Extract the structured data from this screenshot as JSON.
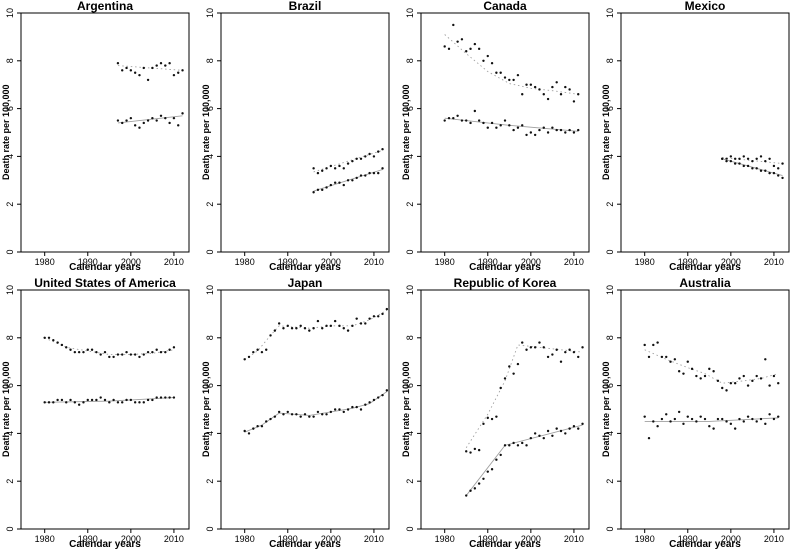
{
  "page": {
    "background": "#ffffff"
  },
  "axes": {
    "xlabel": "Calendar years",
    "ylabel": "Death rate per 100,000",
    "x_ticks": [
      1980,
      1990,
      2000,
      2010
    ],
    "y_ticks": [
      0,
      2,
      4,
      6,
      8,
      10
    ],
    "xlim": [
      1974.5,
      2013.5
    ],
    "ylim": [
      0,
      10
    ],
    "grid": false,
    "legend": "none"
  },
  "styles": {
    "point_color": "#111111",
    "trend_color": "#a0a0a0",
    "box_color": "#000000",
    "upper_trend_style": "dotted",
    "lower_trend_style": "solid"
  },
  "chart_data": [
    {
      "type": "scatter",
      "title": "Argentina",
      "x_start": 1997,
      "series": [
        {
          "name": "upper",
          "trend_style": "dotted",
          "values": [
            7.9,
            7.6,
            7.7,
            7.6,
            7.5,
            7.4,
            7.7,
            7.2,
            7.7,
            7.8,
            7.9,
            7.8,
            7.9,
            7.4,
            7.5,
            7.6
          ],
          "trend": [
            [
              1997,
              7.8
            ],
            [
              2012,
              7.6
            ]
          ]
        },
        {
          "name": "lower",
          "trend_style": "solid",
          "values": [
            5.5,
            5.4,
            5.5,
            5.6,
            5.3,
            5.2,
            5.4,
            5.5,
            5.6,
            5.5,
            5.7,
            5.6,
            5.4,
            5.6,
            5.3,
            5.8
          ],
          "trend": [
            [
              1997,
              5.4
            ],
            [
              2012,
              5.7
            ]
          ]
        }
      ]
    },
    {
      "type": "scatter",
      "title": "Brazil",
      "x_start": 1996,
      "series": [
        {
          "name": "upper",
          "trend_style": "dotted",
          "values": [
            3.5,
            3.3,
            3.4,
            3.5,
            3.6,
            3.5,
            3.6,
            3.5,
            3.7,
            3.8,
            3.9,
            3.9,
            4.0,
            4.1,
            4.0,
            4.2,
            4.3
          ],
          "trend": [
            [
              1996,
              3.35
            ],
            [
              2012,
              4.25
            ]
          ]
        },
        {
          "name": "lower",
          "trend_style": "solid",
          "values": [
            2.5,
            2.6,
            2.6,
            2.7,
            2.8,
            2.9,
            2.9,
            2.8,
            3.0,
            3.0,
            3.1,
            3.2,
            3.2,
            3.3,
            3.3,
            3.3,
            3.5
          ],
          "trend": [
            [
              1996,
              2.55
            ],
            [
              2012,
              3.45
            ]
          ]
        }
      ]
    },
    {
      "type": "scatter",
      "title": "Canada",
      "x_start": 1980,
      "series": [
        {
          "name": "upper",
          "trend_style": "dotted",
          "values": [
            8.6,
            8.5,
            9.5,
            8.8,
            8.9,
            8.4,
            8.5,
            8.7,
            8.5,
            8.0,
            8.2,
            7.9,
            7.5,
            7.5,
            7.3,
            7.2,
            7.2,
            7.4,
            6.6,
            7.0,
            7.0,
            6.9,
            6.8,
            6.6,
            6.4,
            6.9,
            7.1,
            6.6,
            6.9,
            6.8,
            6.3,
            6.6
          ],
          "trend": [
            [
              1980,
              9.1
            ],
            [
              1985,
              8.3
            ],
            [
              1990,
              7.55
            ],
            [
              1995,
              7.05
            ],
            [
              2000,
              6.85
            ],
            [
              2005,
              6.75
            ],
            [
              2011,
              6.6
            ]
          ]
        },
        {
          "name": "lower",
          "trend_style": "solid",
          "values": [
            5.5,
            5.6,
            5.6,
            5.7,
            5.5,
            5.5,
            5.4,
            5.9,
            5.5,
            5.4,
            5.2,
            5.4,
            5.2,
            5.3,
            5.5,
            5.3,
            5.1,
            5.2,
            5.3,
            4.9,
            5.0,
            4.9,
            5.1,
            5.2,
            5.0,
            5.2,
            5.1,
            5.1,
            5.0,
            5.1,
            5.0,
            5.1
          ],
          "trend": [
            [
              1980,
              5.6
            ],
            [
              1995,
              5.3
            ],
            [
              2011,
              5.05
            ]
          ]
        }
      ]
    },
    {
      "type": "scatter",
      "title": "Mexico",
      "x_start": 1998,
      "series": [
        {
          "name": "upper",
          "trend_style": "dotted",
          "values": [
            3.9,
            3.9,
            4.0,
            3.9,
            3.9,
            4.0,
            3.9,
            3.8,
            3.9,
            4.0,
            3.8,
            3.9,
            3.6,
            3.5,
            3.7
          ],
          "trend": [
            [
              1998,
              3.95
            ],
            [
              2012,
              3.7
            ]
          ]
        },
        {
          "name": "lower",
          "trend_style": "solid",
          "values": [
            3.9,
            3.8,
            3.8,
            3.7,
            3.7,
            3.6,
            3.6,
            3.5,
            3.5,
            3.4,
            3.4,
            3.3,
            3.3,
            3.2,
            3.1
          ],
          "trend": [
            [
              1998,
              3.9
            ],
            [
              2012,
              3.2
            ]
          ]
        }
      ]
    },
    {
      "type": "scatter",
      "title": "United States of America",
      "x_start": 1980,
      "series": [
        {
          "name": "upper",
          "trend_style": "dotted",
          "values": [
            8.0,
            8.0,
            7.9,
            7.8,
            7.7,
            7.6,
            7.5,
            7.4,
            7.4,
            7.4,
            7.5,
            7.5,
            7.4,
            7.3,
            7.4,
            7.2,
            7.2,
            7.3,
            7.3,
            7.4,
            7.3,
            7.3,
            7.2,
            7.3,
            7.4,
            7.4,
            7.5,
            7.4,
            7.4,
            7.5,
            7.6
          ],
          "trend": [
            [
              1980,
              8.0
            ],
            [
              1985,
              7.6
            ],
            [
              1990,
              7.45
            ],
            [
              1995,
              7.3
            ],
            [
              2000,
              7.3
            ],
            [
              2005,
              7.35
            ],
            [
              2010,
              7.5
            ]
          ]
        },
        {
          "name": "lower",
          "trend_style": "solid",
          "values": [
            5.3,
            5.3,
            5.3,
            5.4,
            5.4,
            5.3,
            5.4,
            5.3,
            5.2,
            5.3,
            5.4,
            5.4,
            5.4,
            5.5,
            5.4,
            5.3,
            5.4,
            5.3,
            5.3,
            5.4,
            5.4,
            5.3,
            5.3,
            5.3,
            5.4,
            5.4,
            5.5,
            5.5,
            5.5,
            5.5,
            5.5
          ],
          "trend": [
            [
              1980,
              5.3
            ],
            [
              1995,
              5.35
            ],
            [
              2010,
              5.5
            ]
          ]
        }
      ]
    },
    {
      "type": "scatter",
      "title": "Japan",
      "x_start": 1980,
      "series": [
        {
          "name": "upper",
          "trend_style": "dotted",
          "values": [
            7.1,
            7.2,
            7.4,
            7.5,
            7.4,
            7.5,
            8.1,
            8.3,
            8.6,
            8.4,
            8.5,
            8.4,
            8.4,
            8.5,
            8.4,
            8.3,
            8.4,
            8.7,
            8.4,
            8.5,
            8.5,
            8.7,
            8.5,
            8.4,
            8.3,
            8.5,
            8.8,
            8.6,
            8.6,
            8.8,
            8.9,
            8.9,
            9.0,
            9.2
          ],
          "trend": [
            [
              1980,
              7.1
            ],
            [
              1983,
              7.45
            ],
            [
              1986,
              8.1
            ],
            [
              1988,
              8.5
            ],
            [
              1995,
              8.4
            ],
            [
              2000,
              8.5
            ],
            [
              2005,
              8.5
            ],
            [
              2009,
              8.75
            ],
            [
              2013,
              9.15
            ]
          ]
        },
        {
          "name": "lower",
          "trend_style": "solid",
          "values": [
            4.1,
            4.0,
            4.2,
            4.3,
            4.3,
            4.5,
            4.6,
            4.7,
            4.9,
            4.8,
            4.9,
            4.8,
            4.8,
            4.7,
            4.8,
            4.7,
            4.7,
            4.9,
            4.8,
            4.8,
            4.9,
            5.0,
            5.0,
            4.9,
            5.0,
            5.1,
            5.1,
            5.0,
            5.2,
            5.3,
            5.4,
            5.5,
            5.6,
            5.8
          ],
          "trend": [
            [
              1980,
              4.05
            ],
            [
              1984,
              4.35
            ],
            [
              1988,
              4.85
            ],
            [
              1995,
              4.75
            ],
            [
              2000,
              4.9
            ],
            [
              2005,
              5.05
            ],
            [
              2009,
              5.25
            ],
            [
              2013,
              5.75
            ]
          ]
        }
      ]
    },
    {
      "type": "scatter",
      "title": "Republic of Korea",
      "x_start": 1985,
      "series": [
        {
          "name": "upper",
          "trend_style": "dotted",
          "values": [
            3.25,
            3.2,
            3.35,
            3.3,
            4.4,
            4.65,
            4.6,
            4.7,
            5.9,
            6.3,
            6.8,
            6.5,
            6.9,
            7.8,
            7.5,
            7.6,
            7.6,
            7.8,
            7.6,
            7.2,
            7.3,
            7.5,
            7.0,
            7.4,
            7.5,
            7.4,
            7.2,
            7.6
          ],
          "trend": [
            [
              1985,
              3.4
            ],
            [
              1990,
              4.8
            ],
            [
              1994,
              6.2
            ],
            [
              1997,
              7.7
            ],
            [
              2012,
              7.4
            ]
          ]
        },
        {
          "name": "lower",
          "trend_style": "solid",
          "values": [
            1.4,
            1.6,
            1.7,
            1.9,
            2.1,
            2.4,
            2.5,
            2.9,
            3.1,
            3.5,
            3.5,
            3.6,
            3.5,
            3.6,
            3.5,
            3.8,
            4.0,
            3.9,
            3.8,
            4.1,
            3.9,
            4.2,
            4.1,
            4.0,
            4.2,
            4.3,
            4.2,
            4.4
          ],
          "trend": [
            [
              1985,
              1.4
            ],
            [
              1994,
              3.5
            ],
            [
              2012,
              4.35
            ]
          ]
        }
      ]
    },
    {
      "type": "scatter",
      "title": "Australia",
      "x_start": 1980,
      "series": [
        {
          "name": "upper",
          "trend_style": "dotted",
          "values": [
            7.7,
            7.2,
            7.7,
            7.8,
            7.2,
            7.2,
            7.0,
            7.1,
            6.6,
            6.5,
            7.0,
            6.7,
            6.4,
            6.3,
            6.4,
            6.7,
            6.6,
            6.2,
            5.9,
            5.8,
            6.1,
            6.1,
            6.3,
            6.4,
            6.0,
            6.2,
            6.4,
            6.3,
            7.1,
            6.0,
            6.4,
            6.1
          ],
          "trend": [
            [
              1980,
              7.5
            ],
            [
              1985,
              7.1
            ],
            [
              1990,
              6.75
            ],
            [
              1994,
              6.5
            ],
            [
              1998,
              6.1
            ],
            [
              2003,
              6.2
            ],
            [
              2007,
              6.3
            ],
            [
              2011,
              6.5
            ]
          ]
        },
        {
          "name": "lower",
          "trend_style": "solid",
          "values": [
            4.7,
            3.8,
            4.5,
            4.3,
            4.6,
            4.8,
            4.5,
            4.6,
            4.9,
            4.4,
            4.7,
            4.6,
            4.5,
            4.7,
            4.6,
            4.3,
            4.2,
            4.6,
            4.6,
            4.5,
            4.4,
            4.2,
            4.6,
            4.5,
            4.7,
            4.6,
            4.5,
            4.6,
            4.4,
            4.8,
            4.6,
            4.7
          ],
          "trend": [
            [
              1980,
              4.5
            ],
            [
              1995,
              4.5
            ],
            [
              2011,
              4.65
            ]
          ]
        }
      ]
    }
  ]
}
